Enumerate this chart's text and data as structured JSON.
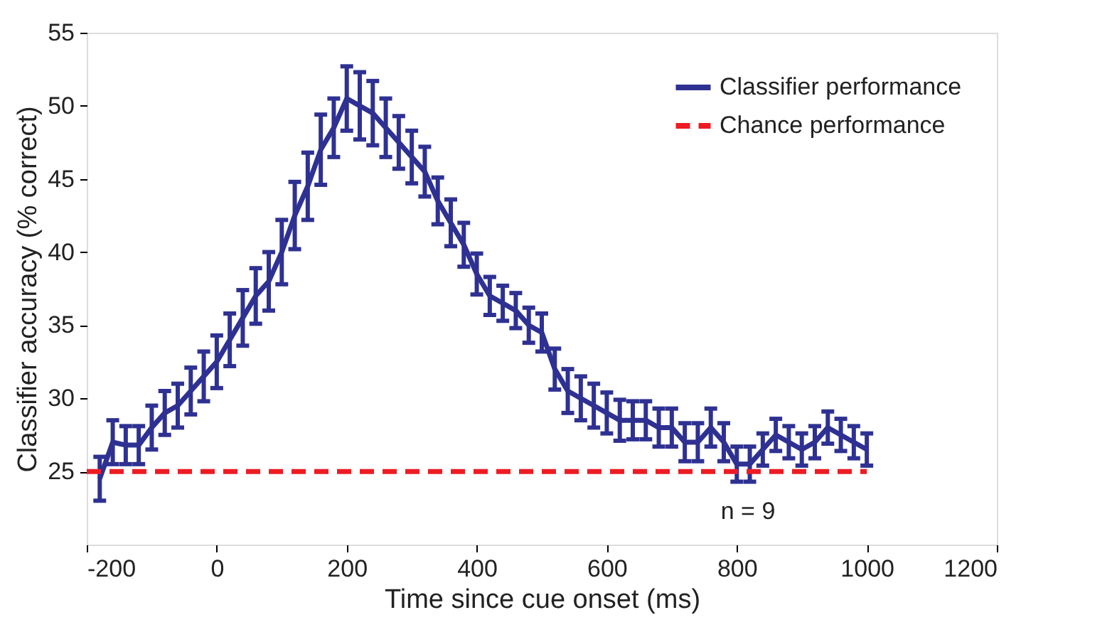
{
  "chart_data": {
    "type": "line",
    "xlabel": "Time since cue onset (ms)",
    "ylabel": "Classifier accuracy (% correct)",
    "xlim": [
      -200,
      1200
    ],
    "xticks": [
      -200,
      0,
      200,
      400,
      600,
      800,
      1000,
      1200
    ],
    "ylim": [
      20,
      55
    ],
    "yticks": [
      25,
      30,
      35,
      40,
      45,
      50,
      55
    ],
    "grid": false,
    "legend": "top right",
    "annotations": [
      "n = 9"
    ],
    "series": [
      {
        "name": "Classifier performance",
        "color": "#2e3192",
        "line_style": "solid",
        "x": [
          -180,
          -160,
          -140,
          -120,
          -100,
          -80,
          -60,
          -40,
          -20,
          0,
          20,
          40,
          60,
          80,
          100,
          120,
          140,
          160,
          180,
          200,
          220,
          240,
          260,
          280,
          300,
          320,
          340,
          360,
          380,
          400,
          420,
          440,
          460,
          480,
          500,
          520,
          540,
          560,
          580,
          600,
          620,
          640,
          660,
          680,
          700,
          720,
          740,
          760,
          780,
          800,
          820,
          840,
          860,
          880,
          900,
          920,
          940,
          960,
          980,
          1000
        ],
        "values": [
          24.5,
          27,
          26.8,
          26.8,
          28,
          29,
          29.5,
          30.5,
          31.5,
          32.5,
          34,
          35.5,
          37,
          38,
          40,
          42.5,
          44.5,
          47,
          48.5,
          50.5,
          50,
          49.5,
          48.5,
          47.5,
          46.5,
          45.5,
          43.5,
          42,
          40.5,
          38.5,
          37,
          36.5,
          36,
          35,
          34.5,
          32,
          30.5,
          30,
          29.5,
          29,
          28.5,
          28.5,
          28.5,
          28,
          28,
          27,
          27,
          28,
          27,
          25.5,
          25.5,
          26.5,
          27.5,
          27,
          26.5,
          27,
          28,
          27.5,
          27,
          26.5
        ],
        "errors": [
          1.5,
          1.5,
          1.3,
          1.3,
          1.5,
          1.5,
          1.5,
          1.6,
          1.7,
          1.8,
          1.8,
          1.9,
          1.9,
          2,
          2.2,
          2.3,
          2.3,
          2.4,
          2,
          2.2,
          2.3,
          2.2,
          2,
          1.8,
          1.8,
          1.7,
          1.6,
          1.6,
          1.5,
          1.4,
          1.3,
          1.2,
          1.2,
          1.2,
          1.3,
          1.4,
          1.5,
          1.5,
          1.5,
          1.4,
          1.4,
          1.3,
          1.3,
          1.3,
          1.3,
          1.3,
          1.3,
          1.3,
          1.3,
          1.2,
          1.2,
          1.1,
          1.1,
          1.1,
          1.1,
          1.1,
          1.1,
          1.1,
          1.1,
          1.1
        ]
      },
      {
        "name": "Chance performance",
        "color": "#ed1c24",
        "line_style": "dashed",
        "x": [
          -200,
          1000
        ],
        "values": [
          25,
          25
        ]
      }
    ]
  }
}
